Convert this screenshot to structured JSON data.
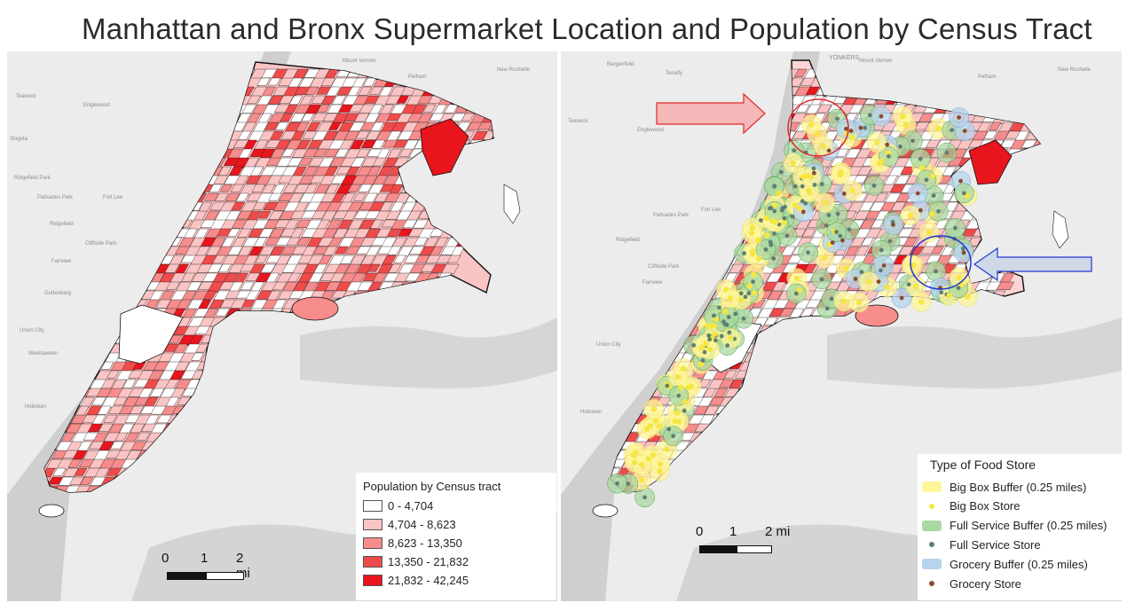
{
  "title": "Manhattan and Bronx Supermarket Location and Population by Census Tract",
  "left_map": {
    "legend": {
      "title": "Population by Census tract",
      "classes": [
        {
          "label": "0 - 4,704",
          "color": "#ffffff"
        },
        {
          "label": "4,704 - 8,623",
          "color": "#fbc4c4"
        },
        {
          "label": "8,623 - 13,350",
          "color": "#f68c8c"
        },
        {
          "label": "13,350 - 21,832",
          "color": "#f04b4b"
        },
        {
          "label": "21,832 - 42,245",
          "color": "#e8151d"
        }
      ]
    },
    "scale_bar": {
      "labels": [
        "0",
        "1",
        "2 mi"
      ]
    },
    "place_labels": [
      "Teaneck",
      "Englewood",
      "Bogota",
      "Ridgefield Park",
      "Palisades Park",
      "Fort Lee",
      "Ridgefield",
      "Cliffside Park",
      "Fairview",
      "Guttenberg",
      "Union City",
      "Weehawken",
      "Hoboken",
      "Mount Vernon",
      "New Rochelle",
      "Pelham"
    ]
  },
  "right_map": {
    "legend": {
      "title": "Type of Food Store",
      "items": [
        {
          "label": "Big Box Buffer (0.25 miles)",
          "kind": "buffer",
          "color": "#fff59a"
        },
        {
          "label": "Big Box Store",
          "kind": "point",
          "color": "#f5e642"
        },
        {
          "label": "Full Service Buffer (0.25 miles)",
          "kind": "buffer",
          "color": "#a9d8a2"
        },
        {
          "label": "Full Service Store",
          "kind": "point",
          "color": "#5f7f72"
        },
        {
          "label": "Grocery Buffer (0.25 miles)",
          "kind": "buffer",
          "color": "#b7d4ee"
        },
        {
          "label": "Grocery Store",
          "kind": "point",
          "color": "#8b4a2f"
        }
      ]
    },
    "scale_bar": {
      "labels": [
        "0",
        "1",
        "2 mi"
      ]
    },
    "place_labels": [
      "YONKERS",
      "Bergenfield",
      "Tenafly",
      "Teaneck",
      "Englewood",
      "Fort Lee",
      "Palisades Park",
      "Ridgefield",
      "Cliffside Park",
      "Fairview",
      "Union City",
      "Hoboken",
      "Mount Vernon",
      "New Rochelle",
      "Pelham"
    ],
    "annotations": {
      "arrow_colors": {
        "red": "#f4b8b8",
        "blue": "#cfd9e6"
      }
    }
  }
}
